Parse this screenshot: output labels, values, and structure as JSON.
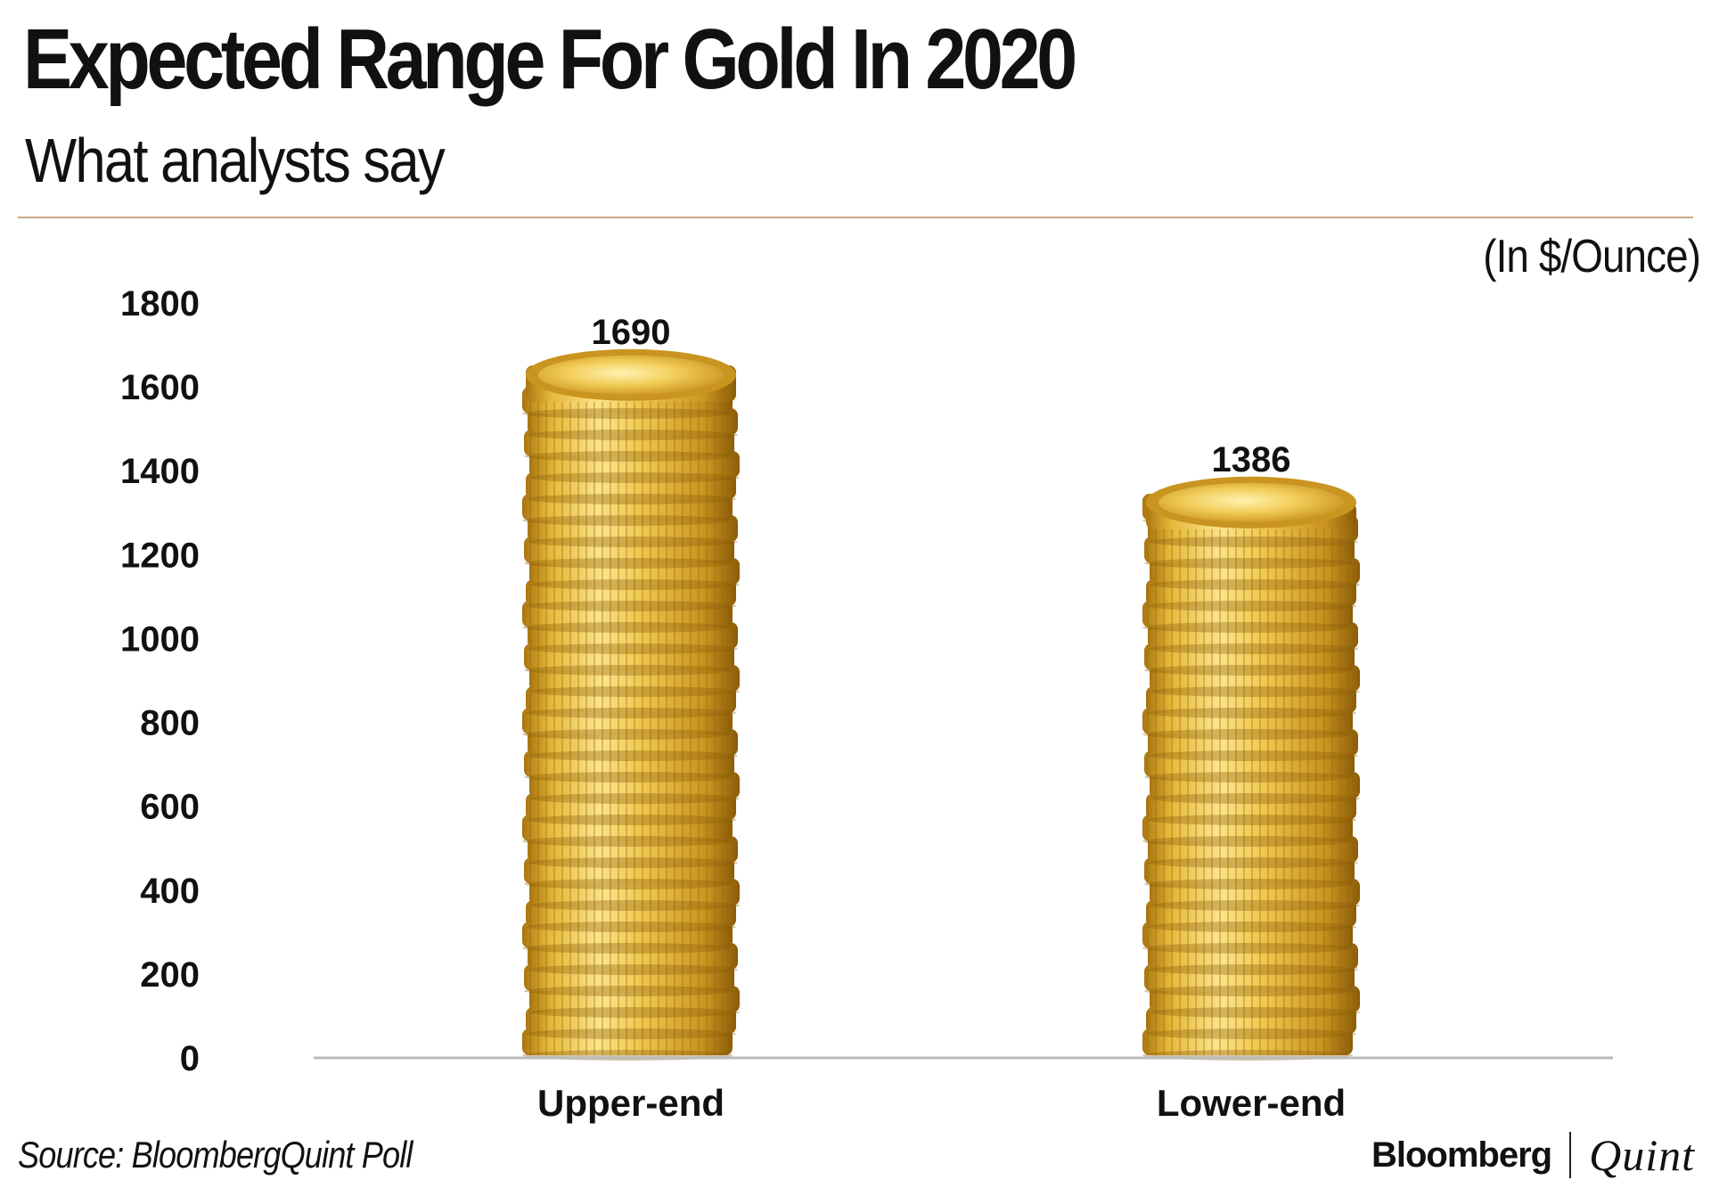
{
  "header": {
    "title": "Expected Range For Gold In 2020",
    "subtitle": "What analysts say",
    "unit": "(In $/Ounce)"
  },
  "footer": {
    "source": "Source: BloombergQuint Poll",
    "logo_left": "Bloomberg",
    "logo_right": "Quint"
  },
  "colors": {
    "coin_light": "#fbe48a",
    "coin_mid": "#e5b83a",
    "coin_dark": "#a9760f",
    "axis_line": "#bbbbbb",
    "rule": "#c9a98a"
  },
  "chart_data": {
    "type": "bar",
    "title": "Expected Range For Gold In 2020",
    "subtitle": "What analysts say",
    "ylabel": "In $/Ounce",
    "xlabel": "",
    "categories": [
      "Upper-end",
      "Lower-end"
    ],
    "values": [
      1690,
      1386
    ],
    "data_labels": [
      "1690",
      "1386"
    ],
    "ylim": [
      0,
      1800
    ],
    "yticks": [
      0,
      200,
      400,
      600,
      800,
      1000,
      1200,
      1400,
      1600,
      1800
    ],
    "grid": false,
    "bar_style": "stacked gold coins"
  }
}
